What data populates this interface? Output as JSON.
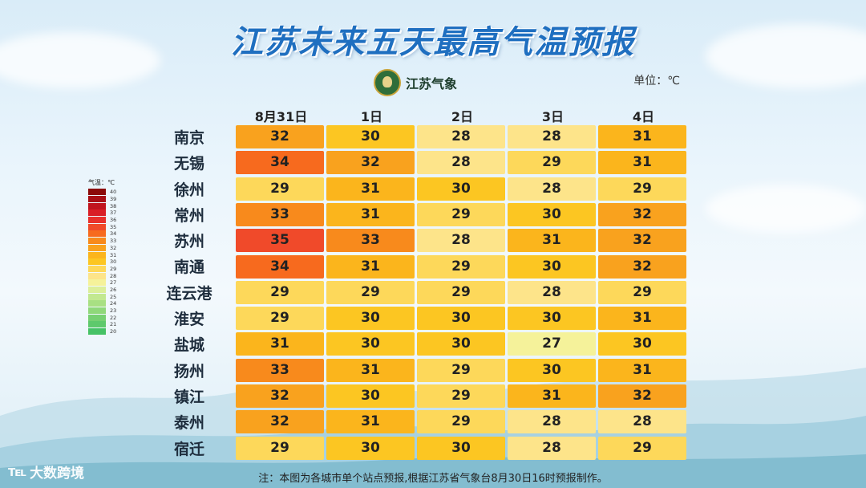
{
  "title": "江苏未来五天最高气温预报",
  "logo_text": "江苏气象",
  "unit_label": "单位：℃",
  "legend_title": "气温：℃",
  "legend": [
    {
      "value": "40",
      "color": "#8b0a0a"
    },
    {
      "value": "39",
      "color": "#a80f16"
    },
    {
      "value": "38",
      "color": "#c0141e"
    },
    {
      "value": "37",
      "color": "#d91e26"
    },
    {
      "value": "36",
      "color": "#e8302c"
    },
    {
      "value": "35",
      "color": "#f04a2a"
    },
    {
      "value": "34",
      "color": "#f76a1e"
    },
    {
      "value": "33",
      "color": "#f88a1c"
    },
    {
      "value": "32",
      "color": "#f9a21e"
    },
    {
      "value": "31",
      "color": "#fbb51c"
    },
    {
      "value": "30",
      "color": "#fcc622"
    },
    {
      "value": "29",
      "color": "#fdd85a"
    },
    {
      "value": "28",
      "color": "#fde48a"
    },
    {
      "value": "27",
      "color": "#f5f29a"
    },
    {
      "value": "26",
      "color": "#dcef9a"
    },
    {
      "value": "25",
      "color": "#c2e890"
    },
    {
      "value": "24",
      "color": "#a8e083"
    },
    {
      "value": "23",
      "color": "#8fd87a"
    },
    {
      "value": "22",
      "color": "#76d072"
    },
    {
      "value": "21",
      "color": "#5ec96c"
    },
    {
      "value": "20",
      "color": "#46c266"
    }
  ],
  "chart_data": {
    "type": "heatmap",
    "title": "江苏未来五天最高气温预报",
    "columns": [
      "8月31日",
      "1日",
      "2日",
      "3日",
      "4日"
    ],
    "rows": [
      "南京",
      "无锡",
      "徐州",
      "常州",
      "苏州",
      "南通",
      "连云港",
      "淮安",
      "盐城",
      "扬州",
      "镇江",
      "泰州",
      "宿迁"
    ],
    "values": [
      [
        32,
        30,
        28,
        28,
        31
      ],
      [
        34,
        32,
        28,
        29,
        31
      ],
      [
        29,
        31,
        30,
        28,
        29
      ],
      [
        33,
        31,
        29,
        30,
        32
      ],
      [
        35,
        33,
        28,
        31,
        32
      ],
      [
        34,
        31,
        29,
        30,
        32
      ],
      [
        29,
        29,
        29,
        28,
        29
      ],
      [
        29,
        30,
        30,
        30,
        31
      ],
      [
        31,
        30,
        30,
        27,
        30
      ],
      [
        33,
        31,
        29,
        30,
        31
      ],
      [
        32,
        30,
        29,
        31,
        32
      ],
      [
        32,
        31,
        29,
        28,
        28
      ],
      [
        29,
        30,
        30,
        28,
        29
      ]
    ],
    "unit": "℃"
  },
  "note": "注：本图为各城市单个站点预报,根据江苏省气象台8月30日16时预报制作。",
  "watermark": "大数跨境",
  "watermark_mark": "℡"
}
